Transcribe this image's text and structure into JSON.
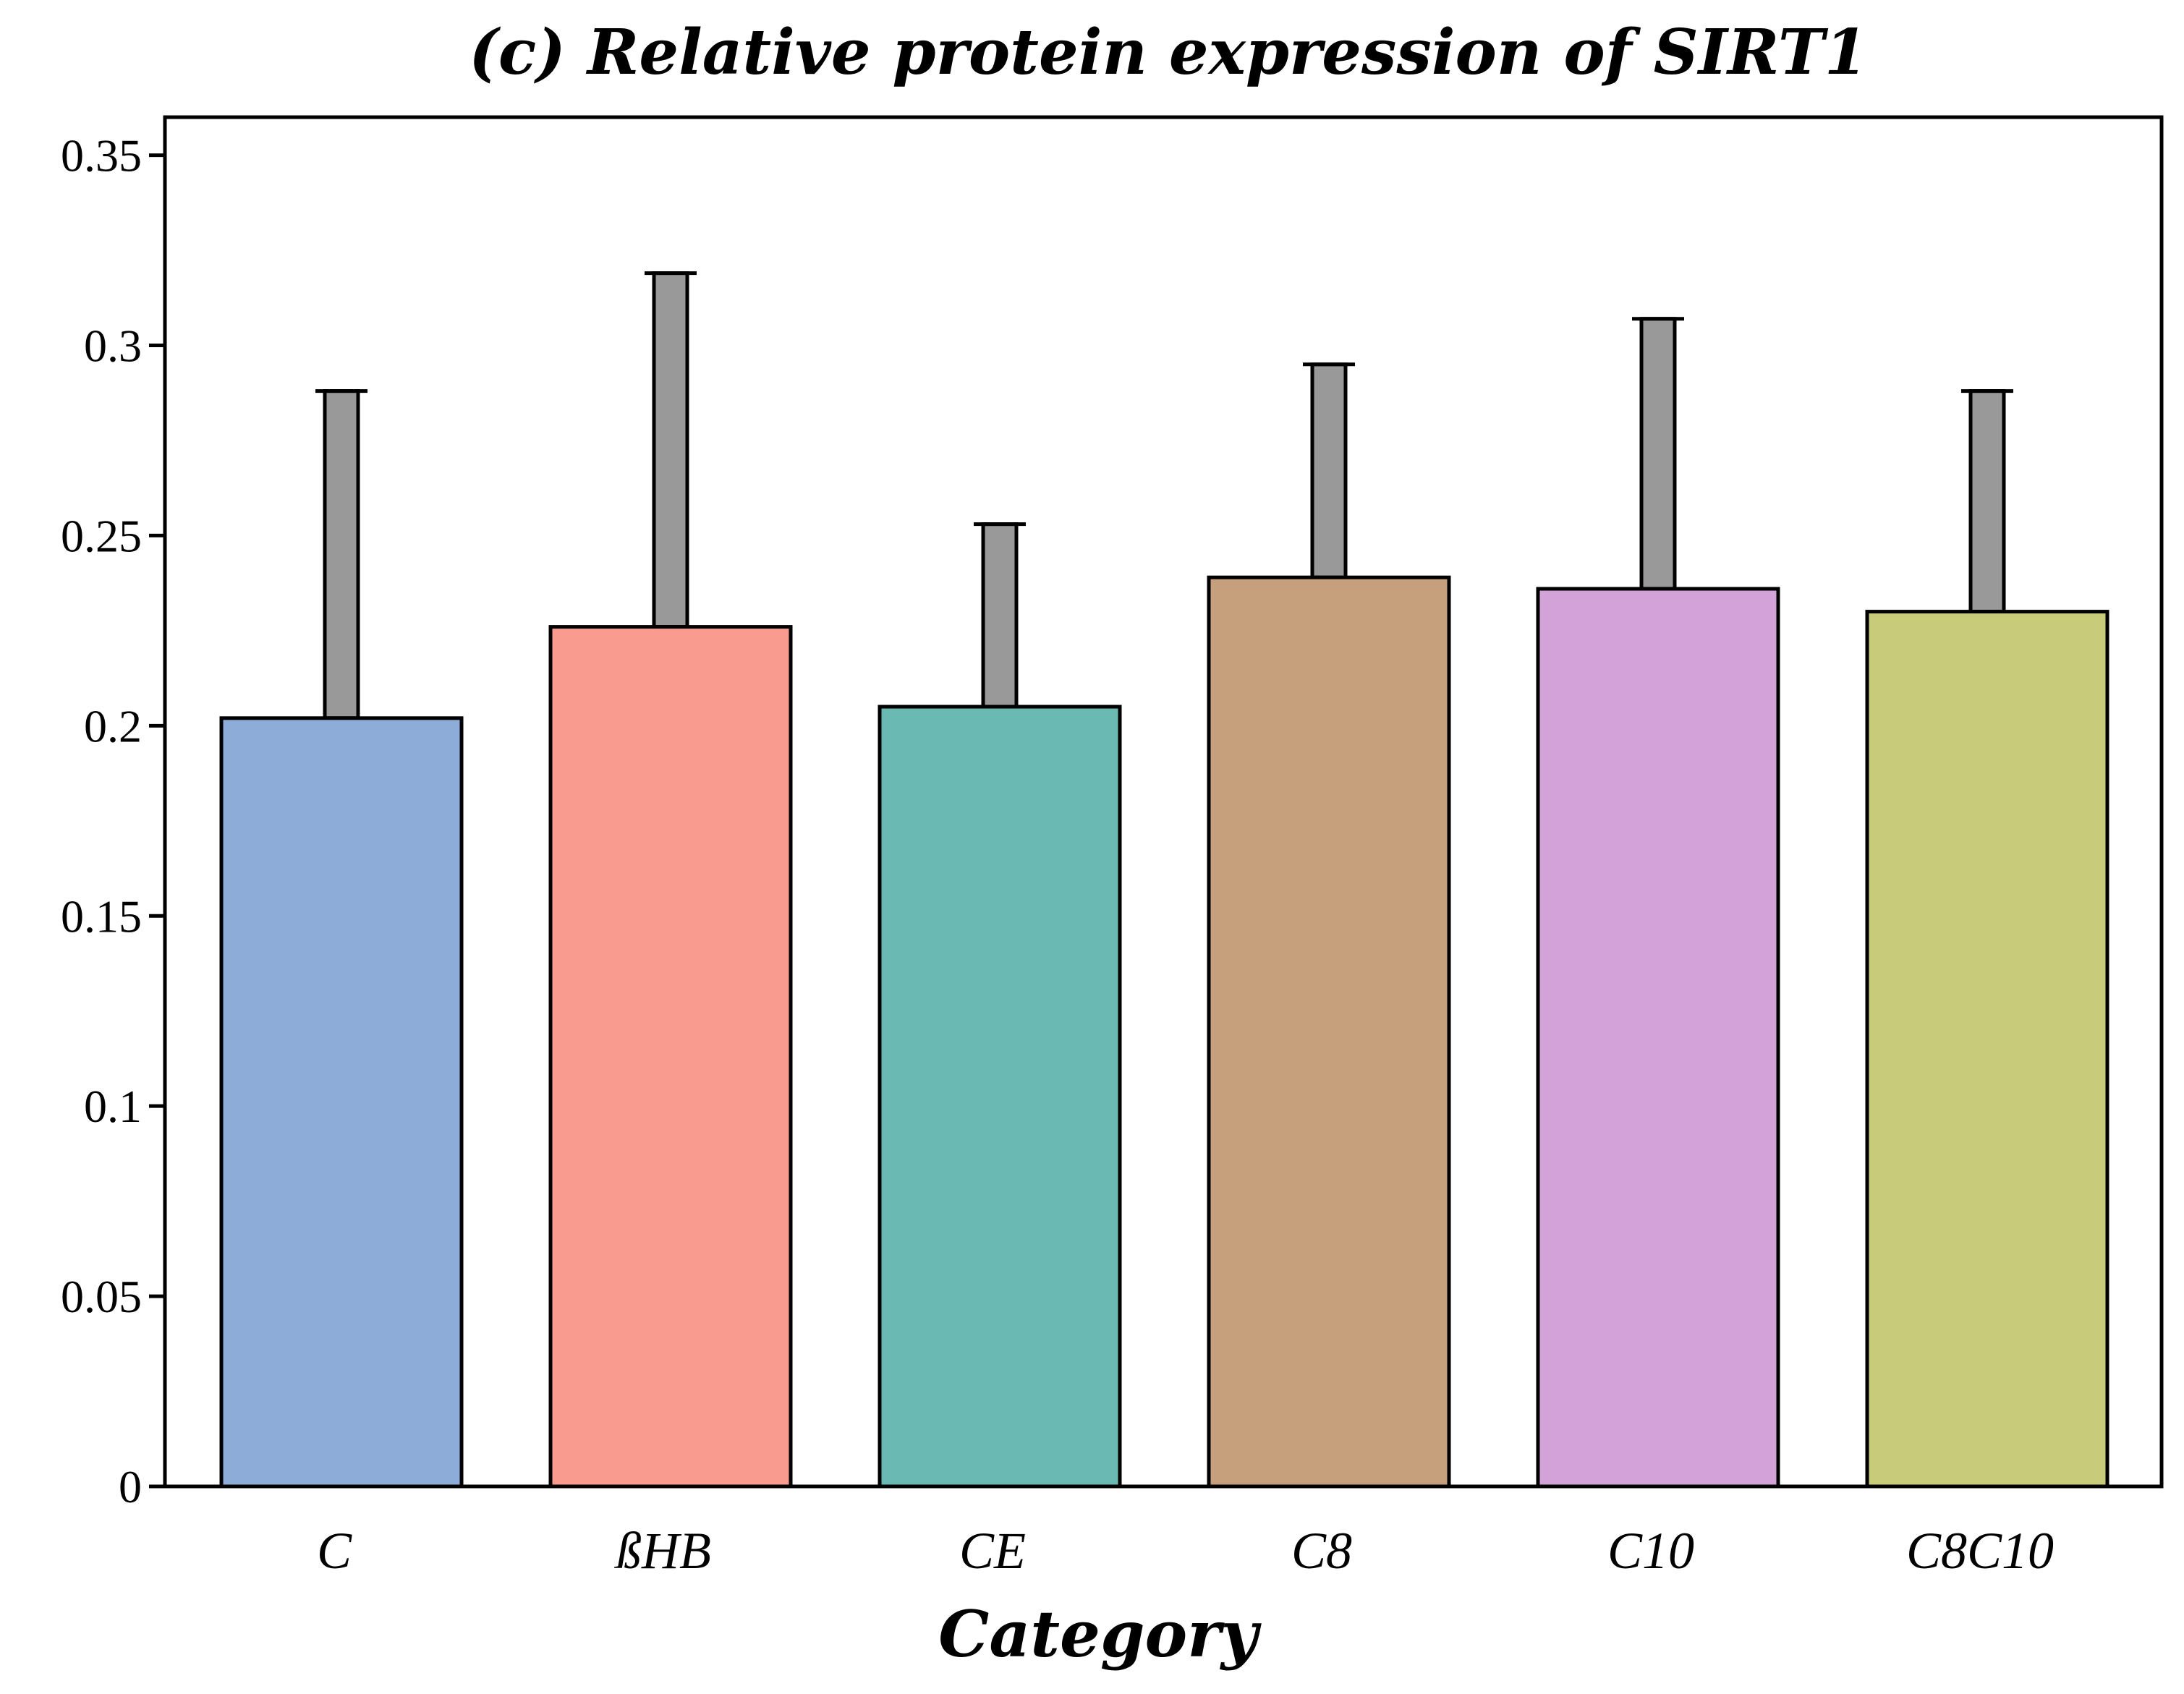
{
  "chart_data": {
    "type": "bar",
    "title": "(c) Relative protein expression of SIRT1",
    "xlabel": "Category",
    "ylabel": "",
    "ylim": [
      0,
      0.36
    ],
    "yticks": [
      0,
      0.05,
      0.1,
      0.15,
      0.2,
      0.25,
      0.3,
      0.35
    ],
    "ytick_labels": [
      "0",
      "0.05",
      "0.1",
      "0.15",
      "0.2",
      "0.25",
      "0.3",
      "0.35"
    ],
    "grid": false,
    "legend": "none",
    "categories": [
      "C",
      "ßHB",
      "CE",
      "C8",
      "C10",
      "C8C10"
    ],
    "values": [
      0.202,
      0.226,
      0.205,
      0.239,
      0.236,
      0.23
    ],
    "error_upper": [
      0.288,
      0.319,
      0.253,
      0.295,
      0.307,
      0.288
    ],
    "colors": [
      "#8eacd8",
      "#f99b8e",
      "#6bb9b3",
      "#c6a07c",
      "#d3a2d8",
      "#c8cb7a"
    ],
    "error_bar_color": "#999999",
    "axis_color": "#000000"
  }
}
